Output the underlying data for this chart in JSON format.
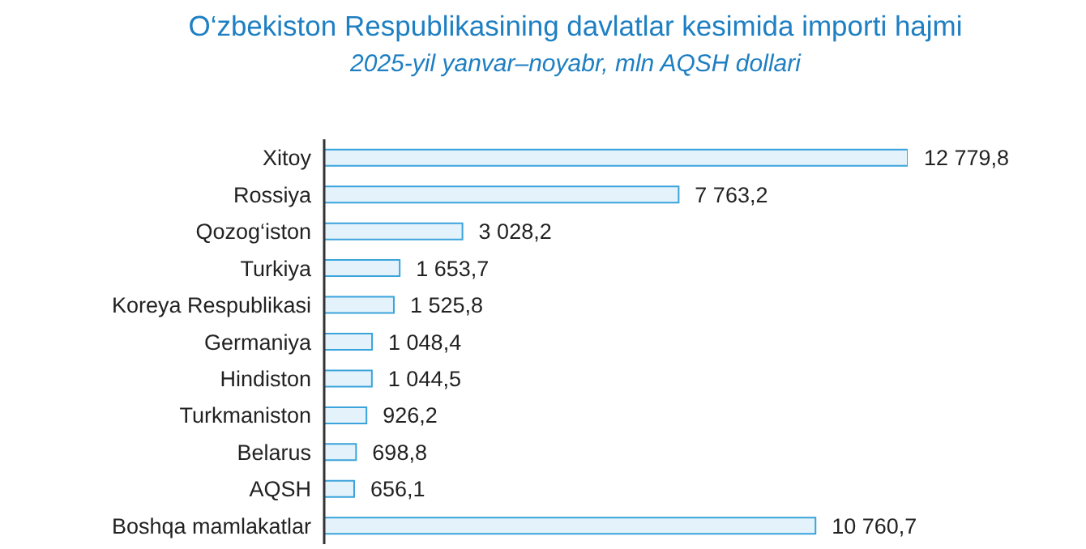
{
  "chart_data": {
    "type": "bar",
    "orientation": "horizontal",
    "title": "O‘zbekiston Respublikasining davlatlar kesimida importi hajmi",
    "subtitle": "2025-yil yanvar–noyabr, mln AQSH dollari",
    "categories": [
      "Xitoy",
      "Rossiya",
      "Qozog‘iston",
      "Turkiya",
      "Koreya Respublikasi",
      "Germaniya",
      "Hindiston",
      "Turkmaniston",
      "Belarus",
      "AQSH",
      "Boshqa mamlakatlar"
    ],
    "values": [
      12779.8,
      7763.2,
      3028.2,
      1653.7,
      1525.8,
      1048.4,
      1044.5,
      926.2,
      698.8,
      656.1,
      10760.7
    ],
    "value_labels": [
      "12 779,8",
      "7 763,2",
      "3 028,2",
      "1 653,7",
      "1 525,8",
      "1 048,4",
      "1 044,5",
      "926,2",
      "698,8",
      "656,1",
      "10 760,7"
    ],
    "color": "#e4f3fb"
  }
}
